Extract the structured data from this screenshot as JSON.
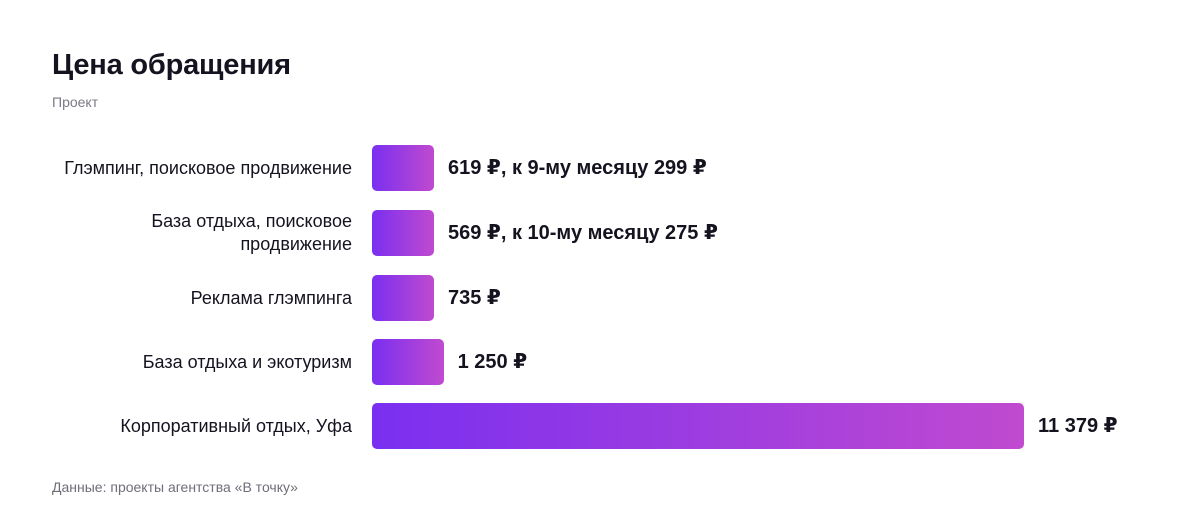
{
  "header": {
    "title": "Цена обращения",
    "subtitle": "Проект"
  },
  "footer": {
    "source": "Данные: проекты агентства «В точку»"
  },
  "chart_data": {
    "type": "bar",
    "orientation": "horizontal",
    "title": "Цена обращения",
    "subtitle": "Проект",
    "categories": [
      "Глэмпинг, поисковое продвижение",
      "База отдыха, поисковое продвижение",
      "Реклама глэмпинга",
      "База отдыха и экотуризм",
      "Корпоративный отдых, Уфа"
    ],
    "values": [
      619,
      569,
      735,
      1250,
      11379
    ],
    "value_labels": [
      "619 ₽, к 9-му месяцу 299 ₽",
      "569 ₽, к 10-му месяцу 275 ₽",
      "735 ₽",
      "1 250 ₽",
      "11 379 ₽"
    ],
    "unit": "₽",
    "xlim": [
      0,
      11379
    ],
    "grid": false,
    "legend": "none",
    "colors": {
      "bar_start": "#7a2ff0",
      "bar_end": "#c04ad0"
    }
  }
}
